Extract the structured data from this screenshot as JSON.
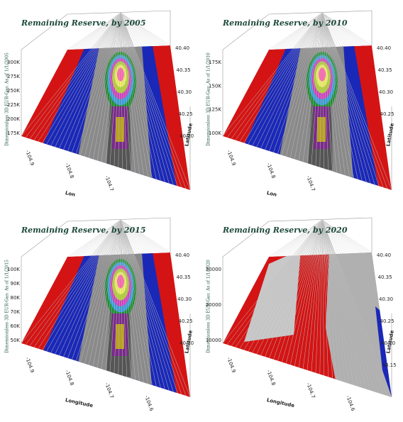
{
  "panels": [
    {
      "title": "Remaining Reserve, by 2005",
      "z_label": "Dimensionless 3D EUR-Gas: As of 1/1/2005",
      "z_ticks": [
        "300K",
        "275K",
        "250K",
        "225K",
        "200K",
        "175K"
      ],
      "lat_ticks": [
        "40.40",
        "40.35",
        "40.30",
        "40.25",
        "40.20"
      ],
      "lat_label": "Latitude",
      "lon_ticks": [
        "-104.9",
        "-104.8",
        "-104.7"
      ],
      "lon_label": "Lon"
    },
    {
      "title": "Remaining Reserve, by 2010",
      "z_label": "Dimensionless 3D EUR-Gas: As of 1/1/2010",
      "z_ticks": [
        "175K",
        "150K",
        "125K",
        "100K"
      ],
      "lat_ticks": [
        "40.40",
        "40.35",
        "40.30",
        "40.25"
      ],
      "lat_label": "Latitude",
      "lon_ticks": [
        "-104.9",
        "-104.8",
        "-104.7"
      ],
      "lon_label": "Lon"
    },
    {
      "title": "Remaining Reserve, by 2015",
      "z_label": "Dimensionless 3D EUR-Gas: As of 1/1/2015",
      "z_ticks": [
        "100K",
        "90K",
        "80K",
        "70K",
        "60K",
        "50K"
      ],
      "lat_ticks": [
        "40.40",
        "40.35",
        "40.30",
        "40.25",
        "40.20"
      ],
      "lat_label": "Latitude",
      "lon_ticks": [
        "-104.9",
        "-104.8",
        "-104.7",
        "-104.6"
      ],
      "lon_label": "Longitude"
    },
    {
      "title": "Remaining Reserve, by 2020",
      "z_label": "Dimensionless 3D EUR-Gas: As of 1/1/2020",
      "z_ticks": [
        "30000",
        "20000",
        "10000"
      ],
      "lat_ticks": [
        "40.40",
        "40.35",
        "40.30",
        "40.25",
        "40.20",
        "40.15"
      ],
      "lat_label": "Latitude",
      "lon_ticks": [
        "-104.9",
        "-104.8",
        "-104.7",
        "-104.6"
      ],
      "lon_label": "Longitude"
    }
  ]
}
